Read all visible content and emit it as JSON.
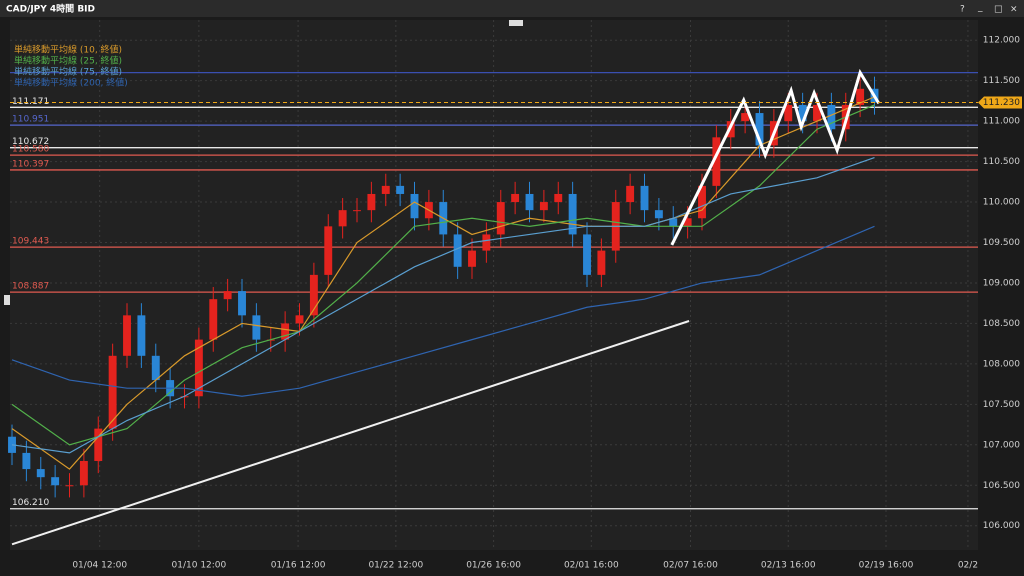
{
  "window": {
    "title": "CAD/JPY 4時間 BID",
    "controls": [
      "?",
      "_",
      "□",
      "×"
    ]
  },
  "chart_data": {
    "type": "candlestick",
    "up_color": "#e4231e",
    "down_color": "#2a86d6",
    "xlim": [
      -0.14,
      67.2
    ],
    "ylim": [
      105.7,
      112.25
    ],
    "xticks": [
      {
        "value": 6.1,
        "label": "01/04 12:00"
      },
      {
        "value": 13.0,
        "label": "01/10 12:00"
      },
      {
        "value": 19.9,
        "label": "01/16 12:00"
      },
      {
        "value": 26.7,
        "label": "01/22 12:00"
      },
      {
        "value": 33.5,
        "label": "01/26 16:00"
      },
      {
        "value": 40.3,
        "label": "02/01 16:00"
      },
      {
        "value": 47.2,
        "label": "02/07 16:00"
      },
      {
        "value": 54.0,
        "label": "02/13 16:00"
      },
      {
        "value": 60.8,
        "label": "02/19 16:00"
      },
      {
        "value": 66.5,
        "label": "02/2"
      }
    ],
    "yticks": [
      {
        "value": 106,
        "label": "106.000"
      },
      {
        "value": 106.5,
        "label": "106.500"
      },
      {
        "value": 107,
        "label": "107.000"
      },
      {
        "value": 107.5,
        "label": "107.500"
      },
      {
        "value": 108,
        "label": "108.000"
      },
      {
        "value": 108.5,
        "label": "108.500"
      },
      {
        "value": 109,
        "label": "109.000"
      },
      {
        "value": 109.5,
        "label": "109.500"
      },
      {
        "value": 110,
        "label": "110.000"
      },
      {
        "value": 110.5,
        "label": "110.500"
      },
      {
        "value": 111,
        "label": "111.000"
      },
      {
        "value": 111.5,
        "label": "111.500"
      },
      {
        "value": 112,
        "label": "112.000"
      }
    ],
    "grid": true,
    "candles": [
      [
        107.1,
        107.25,
        106.75,
        106.9
      ],
      [
        106.9,
        107.05,
        106.55,
        106.7
      ],
      [
        106.7,
        106.85,
        106.45,
        106.6
      ],
      [
        106.6,
        106.75,
        106.35,
        106.5
      ],
      [
        106.5,
        106.65,
        106.35,
        106.5
      ],
      [
        106.5,
        106.95,
        106.35,
        106.8
      ],
      [
        106.8,
        107.35,
        106.65,
        107.2
      ],
      [
        107.2,
        108.25,
        107.05,
        108.1
      ],
      [
        108.1,
        108.75,
        107.95,
        108.6
      ],
      [
        108.6,
        108.75,
        107.95,
        108.1
      ],
      [
        108.1,
        108.25,
        107.65,
        107.8
      ],
      [
        107.8,
        107.95,
        107.45,
        107.6
      ],
      [
        107.6,
        107.75,
        107.45,
        107.6
      ],
      [
        107.6,
        108.45,
        107.45,
        108.3
      ],
      [
        108.3,
        108.95,
        108.15,
        108.8
      ],
      [
        108.8,
        109.05,
        108.65,
        108.9
      ],
      [
        108.9,
        109.05,
        108.45,
        108.6
      ],
      [
        108.6,
        108.75,
        108.15,
        108.3
      ],
      [
        108.3,
        108.45,
        108.15,
        108.3
      ],
      [
        108.3,
        108.65,
        108.15,
        108.5
      ],
      [
        108.5,
        108.75,
        108.35,
        108.6
      ],
      [
        108.6,
        109.25,
        108.45,
        109.1
      ],
      [
        109.1,
        109.85,
        108.95,
        109.7
      ],
      [
        109.7,
        110.05,
        109.55,
        109.9
      ],
      [
        109.9,
        110.05,
        109.75,
        109.9
      ],
      [
        109.9,
        110.25,
        109.75,
        110.1
      ],
      [
        110.1,
        110.35,
        109.95,
        110.2
      ],
      [
        110.2,
        110.35,
        109.95,
        110.1
      ],
      [
        110.1,
        110.25,
        109.65,
        109.8
      ],
      [
        109.8,
        110.15,
        109.65,
        110.0
      ],
      [
        110.0,
        110.15,
        109.45,
        109.6
      ],
      [
        109.6,
        109.75,
        109.05,
        109.2
      ],
      [
        109.2,
        109.55,
        109.05,
        109.4
      ],
      [
        109.4,
        109.75,
        109.25,
        109.6
      ],
      [
        109.6,
        110.15,
        109.45,
        110.0
      ],
      [
        110.0,
        110.25,
        109.85,
        110.1
      ],
      [
        110.1,
        110.25,
        109.75,
        109.9
      ],
      [
        109.9,
        110.15,
        109.75,
        110.0
      ],
      [
        110.0,
        110.25,
        109.85,
        110.1
      ],
      [
        110.1,
        110.25,
        109.45,
        109.6
      ],
      [
        109.6,
        109.75,
        108.95,
        109.1
      ],
      [
        109.1,
        109.55,
        108.95,
        109.4
      ],
      [
        109.4,
        110.15,
        109.25,
        110.0
      ],
      [
        110.0,
        110.35,
        109.85,
        110.2
      ],
      [
        110.2,
        110.35,
        109.75,
        109.9
      ],
      [
        109.9,
        110.05,
        109.65,
        109.8
      ],
      [
        109.8,
        109.95,
        109.55,
        109.7
      ],
      [
        109.7,
        109.95,
        109.55,
        109.8
      ],
      [
        109.8,
        110.35,
        109.65,
        110.2
      ],
      [
        110.2,
        110.95,
        110.05,
        110.8
      ],
      [
        110.8,
        111.15,
        110.65,
        111.0
      ],
      [
        111.0,
        111.25,
        110.85,
        111.1
      ],
      [
        111.1,
        111.25,
        110.55,
        110.7
      ],
      [
        110.7,
        111.15,
        110.55,
        111.0
      ],
      [
        111.0,
        111.35,
        110.85,
        111.2
      ],
      [
        111.2,
        111.35,
        110.85,
        111.0
      ],
      [
        111.0,
        111.35,
        110.85,
        111.2
      ],
      [
        111.2,
        111.35,
        110.75,
        110.9
      ],
      [
        110.9,
        111.35,
        110.75,
        111.2
      ],
      [
        111.2,
        111.55,
        111.05,
        111.4
      ],
      [
        111.4,
        111.55,
        111.08,
        111.23
      ]
    ],
    "series": [
      {
        "name": "単純移動平均線 (10, 終値)",
        "color": "#d99a2b",
        "x": [
          0,
          4,
          8,
          12,
          16,
          20,
          24,
          28,
          32,
          36,
          40,
          44,
          48,
          52,
          56,
          60
        ],
        "values": [
          107.2,
          106.7,
          107.5,
          108.1,
          108.5,
          108.4,
          109.5,
          110.0,
          109.6,
          109.8,
          109.7,
          109.7,
          109.9,
          110.7,
          111.0,
          111.3
        ]
      },
      {
        "name": "単純移動平均線 (25, 終値)",
        "color": "#52b04a",
        "x": [
          0,
          4,
          8,
          12,
          16,
          20,
          24,
          28,
          32,
          36,
          40,
          44,
          48,
          52,
          56,
          60
        ],
        "values": [
          107.5,
          107.0,
          107.2,
          107.8,
          108.2,
          108.4,
          109.0,
          109.7,
          109.8,
          109.7,
          109.8,
          109.7,
          109.7,
          110.2,
          110.9,
          111.2
        ]
      },
      {
        "name": "単純移動平均線 (75, 終値)",
        "color": "#5a9fd0",
        "x": [
          0,
          4,
          8,
          12,
          16,
          20,
          24,
          28,
          32,
          36,
          40,
          44,
          46,
          50,
          56,
          60
        ],
        "values": [
          107.0,
          106.9,
          107.3,
          107.6,
          108.0,
          108.4,
          108.8,
          109.2,
          109.5,
          109.6,
          109.7,
          109.7,
          109.8,
          110.1,
          110.3,
          110.55
        ]
      },
      {
        "name": "単純移動平均線 (200, 終値)",
        "color": "#2f64b0",
        "x": [
          0,
          4,
          8,
          12,
          16,
          20,
          24,
          28,
          32,
          36,
          40,
          44,
          48,
          52,
          56,
          60
        ],
        "values": [
          108.05,
          107.8,
          107.7,
          107.7,
          107.6,
          107.7,
          107.9,
          108.1,
          108.3,
          108.5,
          108.7,
          108.8,
          109.0,
          109.1,
          109.4,
          109.7
        ]
      }
    ],
    "levels": [
      {
        "value": 111.6,
        "color": "#3a4fb0"
      },
      {
        "value": 111.171,
        "label": "111.171",
        "color": "#e8e8e8"
      },
      {
        "value": 110.951,
        "label": "110.951",
        "color": "#5566cc"
      },
      {
        "value": 110.672,
        "label": "110.672",
        "color": "#e8e8e8"
      },
      {
        "value": 110.58,
        "label": "110.580",
        "color": "#e05a50"
      },
      {
        "value": 110.397,
        "label": "110.397",
        "color": "#e05a50"
      },
      {
        "value": 109.443,
        "label": "109.443",
        "color": "#e05a50"
      },
      {
        "value": 108.887,
        "label": "108.887",
        "color": "#e05a50"
      },
      {
        "value": 106.21,
        "label": "106.210",
        "color": "#e8e8e8"
      }
    ],
    "current_price": {
      "value": 111.23,
      "label": "111.230",
      "color": "#f0a818"
    },
    "lines": [
      {
        "color": "#f0f0f0",
        "width": 2,
        "x": [
          0,
          47.1
        ],
        "y": [
          105.77,
          108.53
        ]
      },
      {
        "color": "#ffffff",
        "width": 3,
        "x": [
          45.9,
          50.9,
          52.4,
          54.2,
          54.9,
          55.8,
          57.4,
          59.0,
          60.3
        ],
        "y": [
          109.47,
          111.26,
          110.58,
          111.38,
          110.93,
          111.35,
          110.64,
          111.6,
          111.22
        ]
      }
    ]
  }
}
